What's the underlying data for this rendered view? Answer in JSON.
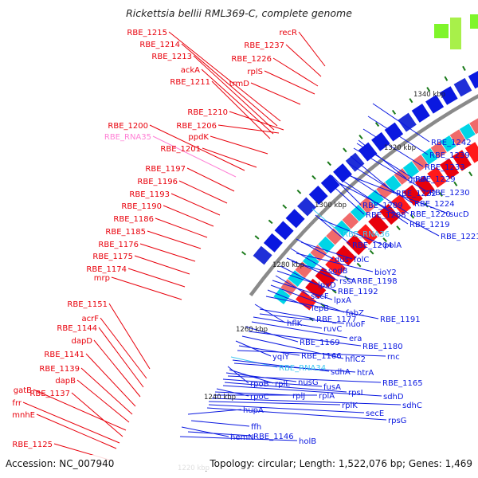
{
  "title": "Rickettsia bellii RML369-C, complete genome",
  "footer": {
    "accession": "Accession: NC_007940",
    "summary": "Topology: circular; Length: 1,522,076 bp; Genes: 1,469"
  },
  "colors": {
    "forward": "#e8000b",
    "reverse": "#0a18e0",
    "rna": "#ff7fd5",
    "rna_cyan": "#3fc8f0",
    "backbone": "#8a8a8a",
    "tick": "#1a7a1a"
  },
  "scale_labels": [
    "1340 kbp",
    "1320 kbp",
    "1300 kbp",
    "1280 kbp",
    "1260 kbp",
    "1240 kbp",
    "1220 kbp"
  ],
  "left_labels": [
    {
      "text": "RBE_1215",
      "kind": "forward"
    },
    {
      "text": "RBE_1214",
      "kind": "forward"
    },
    {
      "text": "RBE_1213",
      "kind": "forward"
    },
    {
      "text": "ackA",
      "kind": "forward"
    },
    {
      "text": "RBE_1211",
      "kind": "forward"
    },
    {
      "text": "recR",
      "kind": "forward"
    },
    {
      "text": "RBE_1237",
      "kind": "forward"
    },
    {
      "text": "RBE_1226",
      "kind": "forward"
    },
    {
      "text": "rplS",
      "kind": "forward"
    },
    {
      "text": "trmD",
      "kind": "forward"
    },
    {
      "text": "RBE_1210",
      "kind": "forward"
    },
    {
      "text": "RBE_1200",
      "kind": "forward"
    },
    {
      "text": "RBE_1206",
      "kind": "forward"
    },
    {
      "text": "RBE_RNA35",
      "kind": "rna"
    },
    {
      "text": "ppdK",
      "kind": "forward"
    },
    {
      "text": "RBE_1201",
      "kind": "forward"
    },
    {
      "text": "RBE_1197",
      "kind": "forward"
    },
    {
      "text": "RBE_1196",
      "kind": "forward"
    },
    {
      "text": "RBE_1193",
      "kind": "forward"
    },
    {
      "text": "RBE_1190",
      "kind": "forward"
    },
    {
      "text": "RBE_1186",
      "kind": "forward"
    },
    {
      "text": "RBE_1185",
      "kind": "forward"
    },
    {
      "text": "RBE_1176",
      "kind": "forward"
    },
    {
      "text": "RBE_1175",
      "kind": "forward"
    },
    {
      "text": "RBE_1174",
      "kind": "forward"
    },
    {
      "text": "mrp",
      "kind": "forward"
    },
    {
      "text": "RBE_1151",
      "kind": "forward"
    },
    {
      "text": "acrF",
      "kind": "forward"
    },
    {
      "text": "RBE_1144",
      "kind": "forward"
    },
    {
      "text": "dapD",
      "kind": "forward"
    },
    {
      "text": "RBE_1141",
      "kind": "forward"
    },
    {
      "text": "RBE_1139",
      "kind": "forward"
    },
    {
      "text": "dapB",
      "kind": "forward"
    },
    {
      "text": "gatB",
      "kind": "forward"
    },
    {
      "text": "RBE_1137",
      "kind": "forward"
    },
    {
      "text": "frr",
      "kind": "forward"
    },
    {
      "text": "mnhE",
      "kind": "forward"
    },
    {
      "text": "RBE_1125",
      "kind": "forward"
    }
  ],
  "right_labels": [
    {
      "text": "RBE_1242",
      "kind": "reverse"
    },
    {
      "text": "RBE_1239",
      "kind": "reverse"
    },
    {
      "text": "RBE_1233",
      "kind": "reverse"
    },
    {
      "text": "gpsA",
      "kind": "reverse"
    },
    {
      "text": "RBE_1229",
      "kind": "reverse"
    },
    {
      "text": "RBE_1230",
      "kind": "reverse"
    },
    {
      "text": "RBE_1222",
      "kind": "reverse"
    },
    {
      "text": "RBE_1224",
      "kind": "reverse"
    },
    {
      "text": "RBE_1209",
      "kind": "reverse"
    },
    {
      "text": "RBE_1220",
      "kind": "reverse"
    },
    {
      "text": "sucD",
      "kind": "reverse"
    },
    {
      "text": "RBE_1208",
      "kind": "reverse"
    },
    {
      "text": "RBE_1219",
      "kind": "reverse"
    },
    {
      "text": "RBE_1221",
      "kind": "reverse"
    },
    {
      "text": "RBE_RNA36",
      "kind": "rna_cyan"
    },
    {
      "text": "RBE_1204",
      "kind": "reverse"
    },
    {
      "text": "polA",
      "kind": "reverse"
    },
    {
      "text": "dus",
      "kind": "reverse"
    },
    {
      "text": "folC",
      "kind": "reverse"
    },
    {
      "text": "sodB",
      "kind": "reverse"
    },
    {
      "text": "bioY2",
      "kind": "reverse"
    },
    {
      "text": "rssA",
      "kind": "reverse"
    },
    {
      "text": "RBE_1198",
      "kind": "reverse"
    },
    {
      "text": "lpxD",
      "kind": "reverse"
    },
    {
      "text": "RBE_1192",
      "kind": "reverse"
    },
    {
      "text": "secF",
      "kind": "reverse"
    },
    {
      "text": "lpxA",
      "kind": "reverse"
    },
    {
      "text": "fabZ",
      "kind": "reverse"
    },
    {
      "text": "lepB",
      "kind": "reverse"
    },
    {
      "text": "RBE_1191",
      "kind": "reverse"
    },
    {
      "text": "hflK",
      "kind": "reverse"
    },
    {
      "text": "RBE_1177",
      "kind": "reverse"
    },
    {
      "text": "nuoF",
      "kind": "reverse"
    },
    {
      "text": "ruvC",
      "kind": "reverse"
    },
    {
      "text": "era",
      "kind": "reverse"
    },
    {
      "text": "RBE_1169",
      "kind": "reverse"
    },
    {
      "text": "RBE_1180",
      "kind": "reverse"
    },
    {
      "text": "hflC2",
      "kind": "reverse"
    },
    {
      "text": "yqiY",
      "kind": "reverse"
    },
    {
      "text": "RBE_1166",
      "kind": "reverse"
    },
    {
      "text": "rnc",
      "kind": "reverse"
    },
    {
      "text": "RBE_RNA34",
      "kind": "rna_cyan"
    },
    {
      "text": "sdhA",
      "kind": "reverse"
    },
    {
      "text": "htrA",
      "kind": "reverse"
    },
    {
      "text": "rpoB",
      "kind": "reverse"
    },
    {
      "text": "rplL",
      "kind": "reverse"
    },
    {
      "text": "nusG",
      "kind": "reverse"
    },
    {
      "text": "RBE_1165",
      "kind": "reverse"
    },
    {
      "text": "fusA",
      "kind": "reverse"
    },
    {
      "text": "rpsL",
      "kind": "reverse"
    },
    {
      "text": "sdhD",
      "kind": "reverse"
    },
    {
      "text": "rpoC",
      "kind": "reverse"
    },
    {
      "text": "rplJ",
      "kind": "reverse"
    },
    {
      "text": "rplA",
      "kind": "reverse"
    },
    {
      "text": "sdhC",
      "kind": "reverse"
    },
    {
      "text": "rplK",
      "kind": "reverse"
    },
    {
      "text": "secE",
      "kind": "reverse"
    },
    {
      "text": "rpsG",
      "kind": "reverse"
    },
    {
      "text": "hupA",
      "kind": "reverse"
    },
    {
      "text": "ffh",
      "kind": "reverse"
    },
    {
      "text": "hemN",
      "kind": "reverse"
    },
    {
      "text": "RBE_1146",
      "kind": "reverse"
    },
    {
      "text": "holB",
      "kind": "reverse"
    }
  ]
}
